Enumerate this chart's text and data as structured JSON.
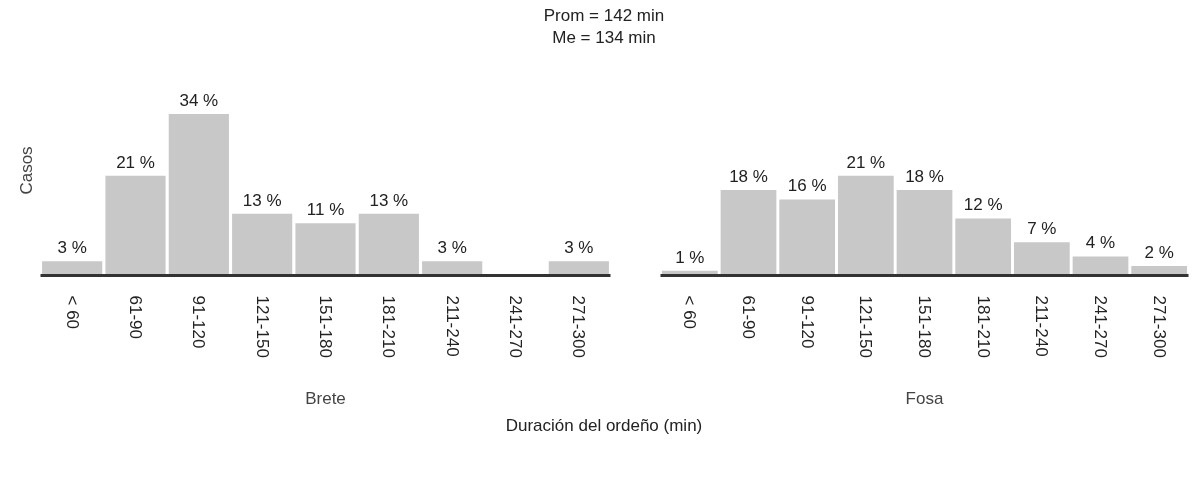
{
  "chart_data": [
    {
      "type": "bar",
      "xlabel": "Brete",
      "ylabel": "Casos",
      "annotations": [
        "Prom = 142 min",
        "Me = 134 min",
        "Duración del ordeño (min)"
      ],
      "categories": [
        "< 60",
        "61-90",
        "91-120",
        "121-150",
        "151-180",
        "181-210",
        "211-240",
        "241-270",
        "271-300"
      ],
      "series": [
        {
          "color": "#c8c8c8",
          "values": [
            3,
            21,
            34,
            13,
            11,
            13,
            3,
            null,
            3
          ],
          "value_labels": [
            "3 %",
            "21 %",
            "34 %",
            "13 %",
            "11 %",
            "13 %",
            "3 %",
            null,
            "3 %"
          ]
        }
      ],
      "grid": false,
      "tick_labels": "x"
    },
    {
      "type": "bar",
      "xlabel": "Fosa",
      "categories": [
        "< 60",
        "61-90",
        "91-120",
        "121-150",
        "151-180",
        "181-210",
        "211-240",
        "241-270",
        "271-300"
      ],
      "series": [
        {
          "color": "#c8c8c8",
          "values": [
            1,
            18,
            16,
            21,
            18,
            12,
            7,
            4,
            2
          ],
          "value_labels": [
            "1 %",
            "18 %",
            "16 %",
            "21 %",
            "18 %",
            "12 %",
            "7 %",
            "4 %",
            "2 %"
          ]
        }
      ],
      "grid": false,
      "tick_labels": "x"
    }
  ]
}
